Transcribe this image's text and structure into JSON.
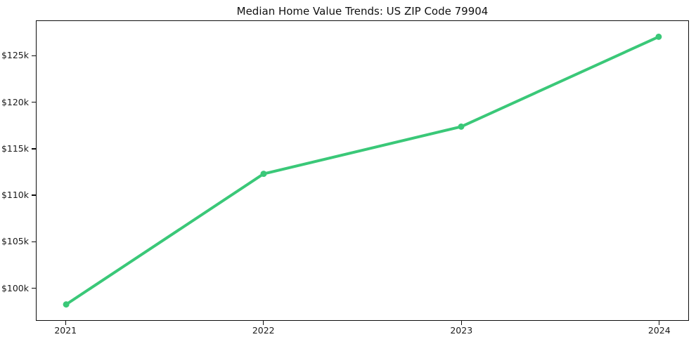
{
  "chart_data": {
    "type": "line",
    "title": "Median Home Value Trends: US ZIP Code 79904",
    "xlabel": "",
    "ylabel": "",
    "x": [
      2021,
      2022,
      2023,
      2024
    ],
    "x_tick_labels": [
      "2021",
      "2022",
      "2023",
      "2024"
    ],
    "series": [
      {
        "name": "Median home value",
        "values": [
          98200,
          112300,
          117400,
          127100
        ]
      }
    ],
    "y_ticks": [
      100000,
      105000,
      110000,
      115000,
      120000,
      125000
    ],
    "y_tick_labels": [
      "$100k",
      "$105k",
      "$110k",
      "$115k",
      "$120k",
      "$125k"
    ],
    "xlim": [
      2020.85,
      2024.15
    ],
    "ylim": [
      96500,
      128800
    ],
    "grid": false,
    "legend": "none",
    "line_color": "#3ac878",
    "marker": "circle",
    "frame_color": "#0d0d0d",
    "background_color": "#ffffff"
  }
}
